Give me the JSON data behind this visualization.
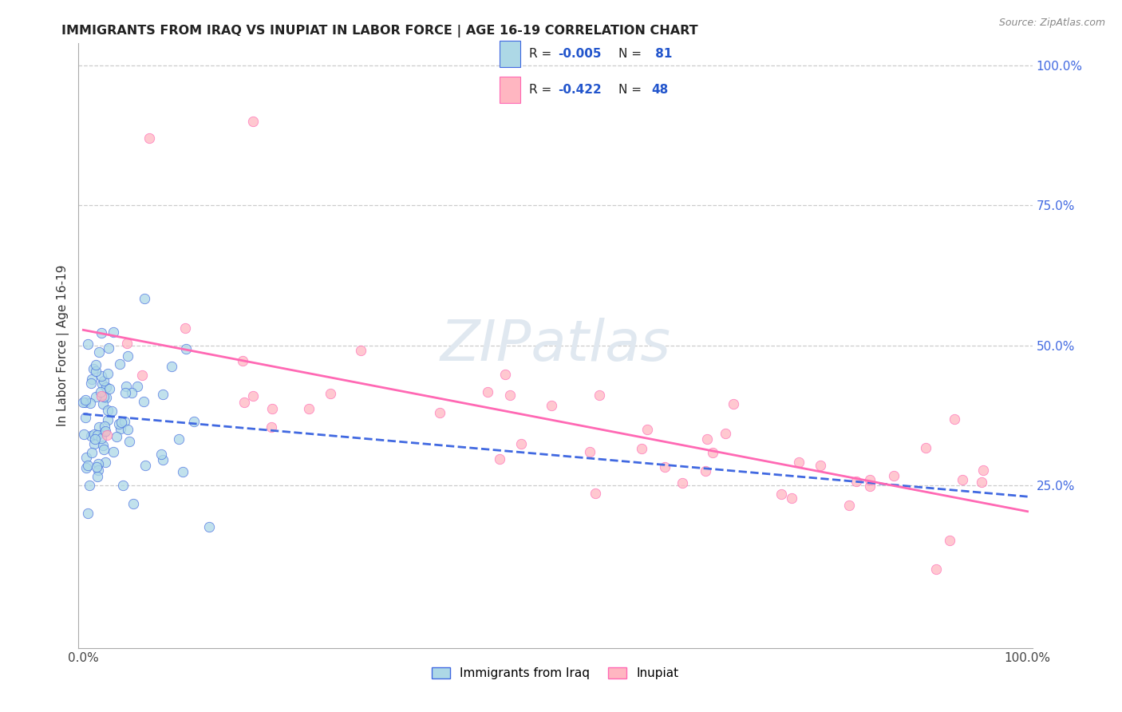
{
  "title": "IMMIGRANTS FROM IRAQ VS INUPIAT IN LABOR FORCE | AGE 16-19 CORRELATION CHART",
  "source": "Source: ZipAtlas.com",
  "ylabel": "In Labor Force | Age 16-19",
  "color_iraq": "#ADD8E6",
  "color_inupiat": "#FFB6C1",
  "line_color_iraq": "#4169E1",
  "line_color_inupiat": "#FF69B4",
  "background": "#FFFFFF",
  "grid_color": "#CCCCCC",
  "right_tick_color": "#4169E1",
  "watermark_color": "#E0E8F0",
  "legend_r1": "R = ",
  "legend_v1": "-0.005",
  "legend_n1": "N = ",
  "legend_nv1": " 81",
  "legend_r2": "R = ",
  "legend_v2": "-0.422",
  "legend_n2": "N = ",
  "legend_nv2": "48"
}
